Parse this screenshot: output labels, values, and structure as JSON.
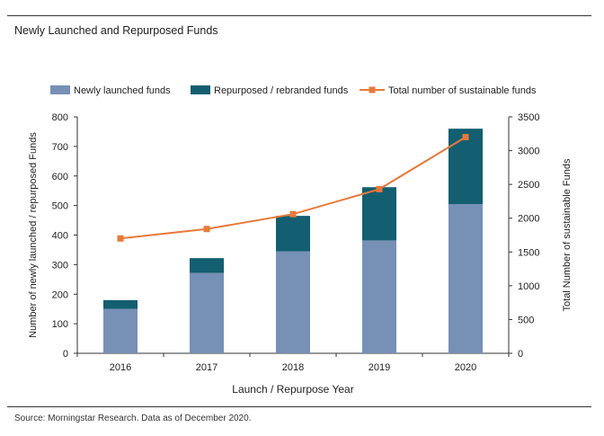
{
  "page": {
    "title": "Newly Launched and Repurposed Funds",
    "source": "Source: Morningstar Research. Data as of December 2020."
  },
  "colors": {
    "newly": "#7690b6",
    "repurposed": "#135e70",
    "total": "#e8793a",
    "axis": "#333333"
  },
  "chart_data": {
    "type": "bar",
    "stacked": true,
    "title": "Newly Launched and Repurposed Funds",
    "categories": [
      "2016",
      "2017",
      "2018",
      "2019",
      "2020"
    ],
    "series": [
      {
        "name": "Newly launched funds",
        "axis": "left",
        "kind": "bar",
        "values": [
          150,
          272,
          345,
          382,
          505
        ]
      },
      {
        "name": "Repurposed / rebranded funds",
        "axis": "left",
        "kind": "bar",
        "values": [
          30,
          50,
          120,
          180,
          255
        ]
      },
      {
        "name": "Total number of sustainable funds",
        "axis": "right",
        "kind": "line",
        "values": [
          1700,
          1840,
          2060,
          2430,
          3200
        ]
      }
    ],
    "xlabel": "Launch / Repurpose Year",
    "ylabel": "Number of newly launched / repurposed Funds",
    "y2label": "Total Number of sustainable Funds",
    "ylim": [
      0,
      800
    ],
    "y2lim": [
      0,
      3500
    ],
    "yticks": [
      0,
      100,
      200,
      300,
      400,
      500,
      600,
      700,
      800
    ],
    "y2ticks": [
      0,
      500,
      1000,
      1500,
      2000,
      2500,
      3000,
      3500
    ],
    "legend_position": "top"
  }
}
